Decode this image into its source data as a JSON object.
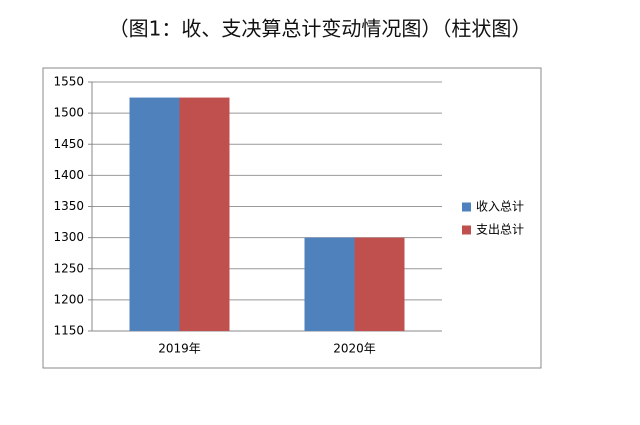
{
  "chart_data": {
    "type": "bar",
    "title": "（图1：收、支决算总计变动情况图）（柱状图）",
    "categories": [
      "2019年",
      "2020年"
    ],
    "series": [
      {
        "name": "收入总计",
        "color": "#4f81bd",
        "values": [
          1525,
          1300
        ]
      },
      {
        "name": "支出总计",
        "color": "#c0504d",
        "values": [
          1525,
          1300
        ]
      }
    ],
    "ylim": [
      1150,
      1550
    ],
    "yticks": [
      1150,
      1200,
      1250,
      1300,
      1350,
      1400,
      1450,
      1500,
      1550
    ],
    "grid": true,
    "legend": "right"
  }
}
